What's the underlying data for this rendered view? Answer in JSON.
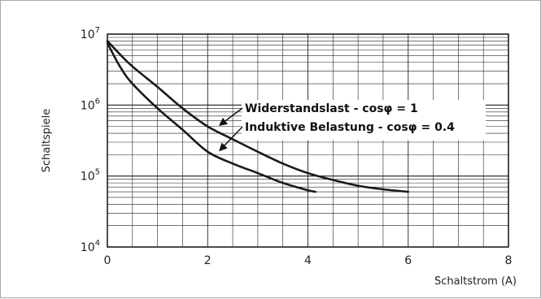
{
  "chart_data": {
    "type": "line",
    "title": "",
    "xlabel": "Schaltstrom  (A)",
    "ylabel": "Schaltspiele",
    "xlim": [
      0,
      8
    ],
    "ylim": [
      10000,
      10000000
    ],
    "yscale": "log",
    "x_ticks": [
      "0",
      "2",
      "4",
      "6",
      "8"
    ],
    "y_ticks": [
      {
        "base": "10",
        "exp": "4"
      },
      {
        "base": "10",
        "exp": "5"
      },
      {
        "base": "10",
        "exp": "6"
      },
      {
        "base": "10",
        "exp": "7"
      }
    ],
    "grid": true,
    "annotations": [
      {
        "text": "Widerstandslast - cosφ = 1",
        "target_x": 2.2,
        "target_y": 500000
      },
      {
        "text": "Induktive Belastung - cosφ = 0.4",
        "target_x": 2.2,
        "target_y": 220000
      }
    ],
    "series": [
      {
        "name": "",
        "x": [
          0,
          0.25,
          0.5,
          1,
          1.5,
          2,
          2.5,
          3,
          3.5,
          4,
          4.5,
          5,
          5.5,
          6
        ],
        "y": [
          8000000,
          5200000,
          3500000,
          1800000,
          900000,
          500000,
          330000,
          220000,
          150000,
          110000,
          88000,
          73000,
          65000,
          60000
        ]
      },
      {
        "name": "",
        "x": [
          0,
          0.25,
          0.5,
          1,
          1.5,
          2,
          2.5,
          3,
          3.5,
          4,
          4.15
        ],
        "y": [
          7500000,
          3500000,
          2000000,
          900000,
          450000,
          220000,
          150000,
          110000,
          80000,
          63000,
          60000
        ]
      }
    ]
  }
}
